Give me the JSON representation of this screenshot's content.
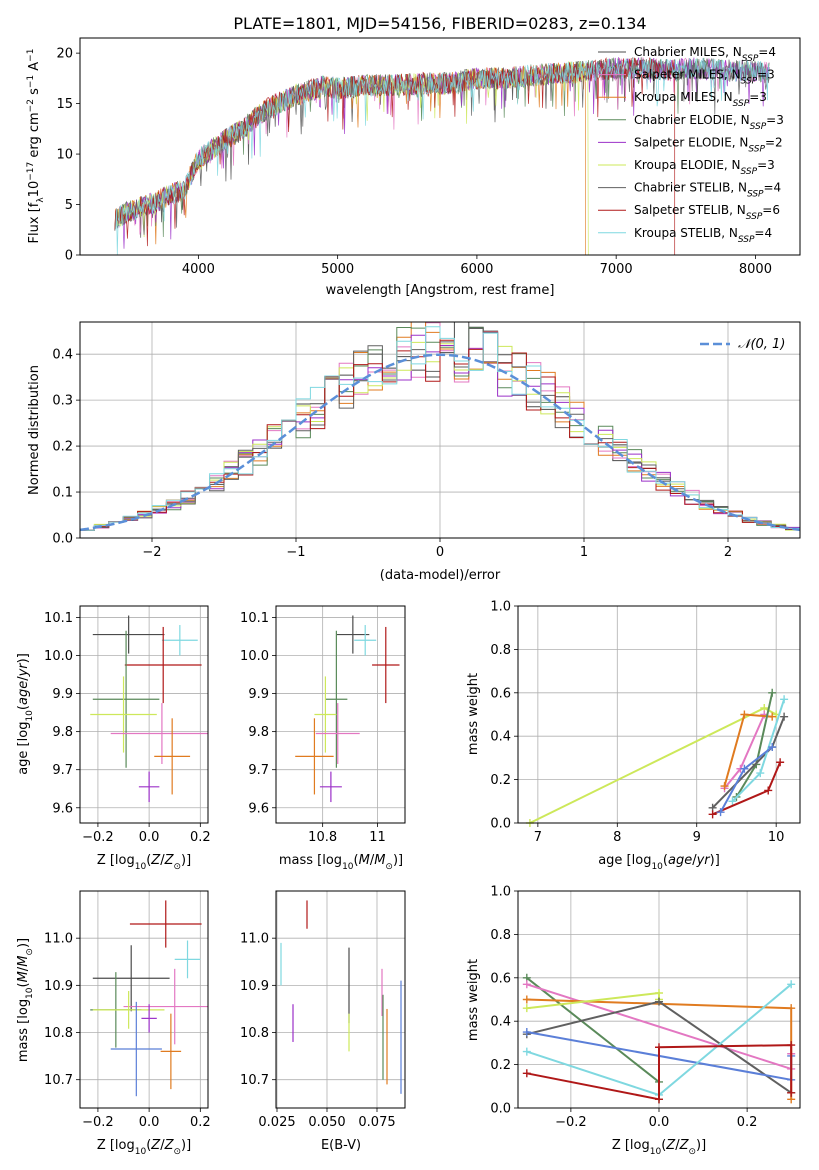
{
  "title": "PLATE=1801, MJD=54156, FIBERID=0283, z=0.134",
  "colors": {
    "Chabrier MILES": "#4b4b4b",
    "Salpeter MILES": "#e377c2",
    "Kroupa MILES": "#e07b20",
    "Chabrier ELODIE": "#5a8a5a",
    "Salpeter ELODIE": "#9b30c8",
    "Kroupa ELODIE": "#cde85a",
    "Chabrier STELIB": "#606060",
    "Salpeter STELIB": "#b01818",
    "Kroupa STELIB": "#7fd8e0",
    "gaussian": "#5b8fd8",
    "blue": "#5b7fd8"
  },
  "chart_data": [
    {
      "type": "line",
      "panel": "spectrum",
      "xlabel": "wavelength [Angstrom, rest frame]",
      "ylabel_main": "Flux [f",
      "ylabel_rest": "10",
      "ylabel_tail": " erg cm",
      "ylabel_tail2": " s",
      "ylabel_tail3": " A",
      "xlim": [
        3150,
        8320
      ],
      "ylim": [
        0,
        21.5
      ],
      "xticks": [
        4000,
        5000,
        6000,
        7000,
        8000
      ],
      "yticks": [
        0,
        5,
        10,
        15,
        20
      ],
      "continuum_x": [
        3400,
        3500,
        3600,
        3700,
        3800,
        3900,
        4000,
        4100,
        4200,
        4300,
        4400,
        4500,
        4600,
        4700,
        4800,
        4900,
        5000,
        5200,
        5400,
        5600,
        5800,
        6000,
        6200,
        6400,
        6600,
        6800,
        7000,
        7200,
        7400,
        7600,
        7800,
        8000,
        8100
      ],
      "continuum_y": [
        3.5,
        4.3,
        4.8,
        5.3,
        6.0,
        6.5,
        9.5,
        10.5,
        11.5,
        12.3,
        13.5,
        14.5,
        15.2,
        15.8,
        16.3,
        16.7,
        16.5,
        16.8,
        16.8,
        17.0,
        17.0,
        17.5,
        17.5,
        17.8,
        18.0,
        18.2,
        18.5,
        18.5,
        18.3,
        18.5,
        18.3,
        18.2,
        18.0
      ],
      "legend": [
        {
          "name": "Chabrier MILES",
          "sub": "SSP",
          "n": "4"
        },
        {
          "name": "Salpeter MILES",
          "sub": "SSP",
          "n": "3"
        },
        {
          "name": "Kroupa MILES",
          "sub": "SSP",
          "n": "3"
        },
        {
          "name": "Chabrier ELODIE",
          "sub": "SSP",
          "n": "3"
        },
        {
          "name": "Salpeter ELODIE",
          "sub": "SSP",
          "n": "2"
        },
        {
          "name": "Kroupa ELODIE",
          "sub": "SSP",
          "n": "3"
        },
        {
          "name": "Chabrier STELIB",
          "sub": "SSP",
          "n": "4"
        },
        {
          "name": "Salpeter STELIB",
          "sub": "SSP",
          "n": "6"
        },
        {
          "name": "Kroupa STELIB",
          "sub": "SSP",
          "n": "4"
        }
      ]
    },
    {
      "type": "area",
      "panel": "residual histogram",
      "xlabel": "(data-model)/error",
      "ylabel": "Normed distribution",
      "xlim": [
        -2.5,
        2.5
      ],
      "ylim": [
        0,
        0.47
      ],
      "xticks": [
        -2,
        -1,
        0,
        1,
        2
      ],
      "xtick_labels": [
        "−2",
        "−1",
        "0",
        "1",
        "2"
      ],
      "yticks": [
        0.0,
        0.1,
        0.2,
        0.3,
        0.4
      ],
      "bin_width": 0.1,
      "legend": "𝒩(0, 1)"
    },
    {
      "type": "scatter",
      "panel": "age vs Z",
      "xlabel": "Z [log",
      "ylabel": "age  [log",
      "xlim": [
        -0.27,
        0.23
      ],
      "ylim": [
        9.56,
        10.13
      ],
      "xticks": [
        -0.2,
        0.0,
        0.2
      ],
      "xtick_labels": [
        "−0.2",
        "0.0",
        "0.2"
      ],
      "yticks": [
        9.6,
        9.7,
        9.8,
        9.9,
        10.0,
        10.1
      ],
      "points": [
        {
          "model": "Chabrier MILES",
          "x": -0.08,
          "xerr": 0.14,
          "y": 10.055,
          "yerr": 0.05
        },
        {
          "model": "Kroupa STELIB",
          "x": 0.12,
          "xerr": 0.07,
          "y": 10.04,
          "yerr": 0.04
        },
        {
          "model": "Salpeter STELIB",
          "x": 0.055,
          "xerr": 0.15,
          "y": 9.975,
          "yerr": 0.1
        },
        {
          "model": "Chabrier ELODIE",
          "x": -0.09,
          "xerr": 0.13,
          "y": 9.885,
          "yerr": 0.18
        },
        {
          "model": "Kroupa ELODIE",
          "x": -0.1,
          "xerr": 0.13,
          "y": 9.845,
          "yerr": 0.1
        },
        {
          "model": "Salpeter MILES",
          "x": 0.05,
          "xerr": 0.2,
          "y": 9.795,
          "yerr": 0.08
        },
        {
          "model": "Kroupa MILES",
          "x": 0.09,
          "xerr": 0.07,
          "y": 9.735,
          "yerr": 0.1
        },
        {
          "model": "Salpeter ELODIE",
          "x": 0.0,
          "xerr": 0.04,
          "y": 9.655,
          "yerr": 0.04
        }
      ]
    },
    {
      "type": "scatter",
      "panel": "age vs mass",
      "xlabel": "mass [log",
      "ylabel": "",
      "xlim": [
        10.63,
        11.1
      ],
      "ylim": [
        9.56,
        10.13
      ],
      "xticks": [
        10.8,
        11.0
      ],
      "yticks": [
        9.6,
        9.7,
        9.8,
        9.9,
        10.0,
        10.1
      ],
      "points": [
        {
          "model": "Chabrier MILES",
          "x": 10.91,
          "xerr": 0.06,
          "y": 10.055,
          "yerr": 0.05
        },
        {
          "model": "Kroupa STELIB",
          "x": 10.955,
          "xerr": 0.04,
          "y": 10.04,
          "yerr": 0.04
        },
        {
          "model": "Salpeter STELIB",
          "x": 11.03,
          "xerr": 0.05,
          "y": 9.975,
          "yerr": 0.1
        },
        {
          "model": "Chabrier ELODIE",
          "x": 10.85,
          "xerr": 0.04,
          "y": 9.885,
          "yerr": 0.18
        },
        {
          "model": "Kroupa ELODIE",
          "x": 10.81,
          "xerr": 0.04,
          "y": 9.845,
          "yerr": 0.1
        },
        {
          "model": "Salpeter MILES",
          "x": 10.855,
          "xerr": 0.08,
          "y": 9.795,
          "yerr": 0.08
        },
        {
          "model": "Kroupa MILES",
          "x": 10.77,
          "xerr": 0.07,
          "y": 9.735,
          "yerr": 0.1
        },
        {
          "model": "Salpeter ELODIE",
          "x": 10.83,
          "xerr": 0.04,
          "y": 9.655,
          "yerr": 0.04
        }
      ]
    },
    {
      "type": "line",
      "panel": "mass weight vs age",
      "xlabel": "age  [log",
      "ylabel": "mass weight",
      "xlim": [
        6.75,
        10.3
      ],
      "ylim": [
        0,
        1.0
      ],
      "xticks": [
        7,
        8,
        9,
        10
      ],
      "yticks": [
        0.0,
        0.2,
        0.4,
        0.6,
        0.8,
        1.0
      ],
      "series": [
        {
          "model": "Kroupa ELODIE",
          "x": [
            6.9,
            9.85,
            10.0
          ],
          "y": [
            0.0,
            0.53,
            0.5
          ]
        },
        {
          "model": "Salpeter MILES",
          "x": [
            9.35,
            9.55,
            9.85
          ],
          "y": [
            0.16,
            0.25,
            0.5
          ]
        },
        {
          "model": "Kroupa MILES",
          "x": [
            9.35,
            9.6,
            9.95
          ],
          "y": [
            0.17,
            0.5,
            0.49
          ]
        },
        {
          "model": "Chabrier ELODIE",
          "x": [
            9.5,
            9.75,
            9.95
          ],
          "y": [
            0.12,
            0.27,
            0.6
          ]
        },
        {
          "model": "Chabrier STELIB",
          "x": [
            9.2,
            9.95,
            10.1
          ],
          "y": [
            0.07,
            0.35,
            0.49
          ]
        },
        {
          "model": "Kroupa STELIB",
          "x": [
            9.45,
            9.8,
            10.1
          ],
          "y": [
            0.1,
            0.23,
            0.57
          ]
        },
        {
          "model": "Salpeter STELIB",
          "x": [
            9.2,
            9.9,
            10.05
          ],
          "y": [
            0.04,
            0.15,
            0.28
          ]
        },
        {
          "model": "blue",
          "x": [
            9.3,
            9.6,
            9.95
          ],
          "y": [
            0.05,
            0.25,
            0.35
          ]
        }
      ]
    },
    {
      "type": "scatter",
      "panel": "mass vs Z",
      "xlabel": "Z [log",
      "ylabel": "mass [log",
      "xlim": [
        -0.27,
        0.23
      ],
      "ylim": [
        10.64,
        11.1
      ],
      "xticks": [
        -0.2,
        0.0,
        0.2
      ],
      "xtick_labels": [
        "−0.2",
        "0.0",
        "0.2"
      ],
      "yticks": [
        10.7,
        10.8,
        10.9,
        11.0
      ],
      "points": [
        {
          "model": "Salpeter STELIB",
          "x": 0.065,
          "xerr": 0.14,
          "y": 11.03,
          "yerr": 0.05
        },
        {
          "model": "Kroupa STELIB",
          "x": 0.15,
          "xerr": 0.05,
          "y": 10.955,
          "yerr": 0.04
        },
        {
          "model": "Chabrier MILES",
          "x": -0.07,
          "xerr": 0.15,
          "y": 10.915,
          "yerr": 0.07
        },
        {
          "model": "Salpeter MILES",
          "x": 0.1,
          "xerr": 0.2,
          "y": 10.855,
          "yerr": 0.08
        },
        {
          "model": "Chabrier ELODIE",
          "x": -0.13,
          "xerr": 0.1,
          "y": 10.848,
          "yerr": 0.08
        },
        {
          "model": "Kroupa ELODIE",
          "x": -0.08,
          "xerr": 0.14,
          "y": 10.848,
          "yerr": 0.04
        },
        {
          "model": "Salpeter ELODIE",
          "x": 0.0,
          "xerr": 0.03,
          "y": 10.83,
          "yerr": 0.03
        },
        {
          "model": "blue",
          "x": -0.05,
          "xerr": 0.1,
          "y": 10.765,
          "yerr": 0.1
        },
        {
          "model": "Kroupa MILES",
          "x": 0.085,
          "xerr": 0.04,
          "y": 10.76,
          "yerr": 0.08
        }
      ]
    },
    {
      "type": "scatter",
      "panel": "mass vs E(B-V)",
      "xlabel": "E(B-V)",
      "ylabel": "",
      "xlim": [
        0.0245,
        0.089
      ],
      "ylim": [
        10.64,
        11.1
      ],
      "xticks": [
        0.025,
        0.05,
        0.075
      ],
      "xtick_labels": [
        "0.025",
        "0.050",
        "0.075"
      ],
      "yticks": [
        10.7,
        10.8,
        10.9,
        11.0
      ],
      "points": [
        {
          "model": "Kroupa STELIB",
          "x": 0.027,
          "y": 10.945,
          "yerr": 0.045
        },
        {
          "model": "Salpeter STELIB",
          "x": 0.04,
          "y": 11.05,
          "yerr": 0.03
        },
        {
          "model": "Salpeter ELODIE",
          "x": 0.033,
          "y": 10.82,
          "yerr": 0.04
        },
        {
          "model": "Chabrier MILES",
          "x": 0.061,
          "y": 10.9,
          "yerr": 0.08
        },
        {
          "model": "Kroupa ELODIE",
          "x": 0.061,
          "y": 10.8,
          "yerr": 0.04
        },
        {
          "model": "Salpeter MILES",
          "x": 0.0775,
          "y": 10.885,
          "yerr": 0.05
        },
        {
          "model": "Chabrier ELODIE",
          "x": 0.078,
          "y": 10.79,
          "yerr": 0.09
        },
        {
          "model": "Kroupa MILES",
          "x": 0.08,
          "y": 10.77,
          "yerr": 0.08
        },
        {
          "model": "blue",
          "x": 0.087,
          "y": 10.79,
          "yerr": 0.12
        }
      ]
    },
    {
      "type": "line",
      "panel": "mass weight vs Z",
      "xlabel": "Z [log",
      "ylabel": "mass weight",
      "xlim": [
        -0.32,
        0.32
      ],
      "ylim": [
        0,
        1.0
      ],
      "xticks": [
        -0.2,
        0.0,
        0.2
      ],
      "xtick_labels": [
        "−0.2",
        "0.0",
        "0.2"
      ],
      "yticks": [
        0.0,
        0.2,
        0.4,
        0.6,
        0.8,
        1.0
      ],
      "series": [
        {
          "model": "Chabrier ELODIE",
          "x": [
            -0.3,
            0.0,
            0.0
          ],
          "y": [
            0.6,
            0.12,
            0.04
          ]
        },
        {
          "model": "Salpeter MILES",
          "x": [
            -0.3,
            0.3,
            0.3
          ],
          "y": [
            0.57,
            0.18,
            0.25
          ]
        },
        {
          "model": "Kroupa MILES",
          "x": [
            -0.3,
            0.3,
            0.3
          ],
          "y": [
            0.5,
            0.46,
            0.04
          ]
        },
        {
          "model": "Kroupa ELODIE",
          "x": [
            -0.3,
            0.0,
            0.0
          ],
          "y": [
            0.46,
            0.53,
            0.5
          ]
        },
        {
          "model": "Chabrier STELIB",
          "x": [
            -0.3,
            0.0,
            0.3
          ],
          "y": [
            0.34,
            0.49,
            0.07
          ]
        },
        {
          "model": "blue",
          "x": [
            -0.3,
            0.3,
            0.3
          ],
          "y": [
            0.35,
            0.13,
            0.24
          ]
        },
        {
          "model": "Kroupa STELIB",
          "x": [
            -0.3,
            0.0,
            0.3
          ],
          "y": [
            0.26,
            0.06,
            0.57
          ]
        },
        {
          "model": "Salpeter STELIB",
          "x": [
            -0.3,
            0.0,
            0.0,
            0.3,
            0.3
          ],
          "y": [
            0.16,
            0.04,
            0.28,
            0.29,
            0.07
          ]
        }
      ]
    }
  ]
}
